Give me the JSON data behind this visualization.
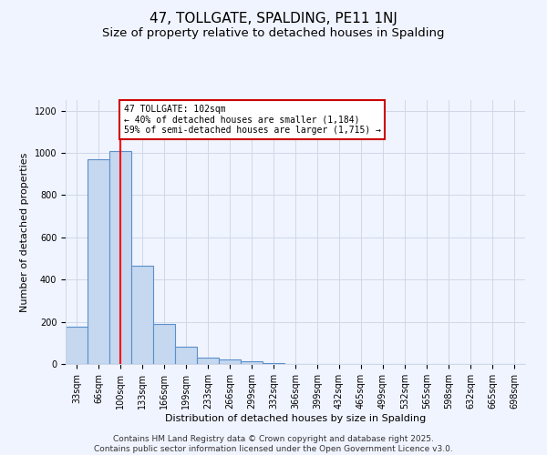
{
  "title": "47, TOLLGATE, SPALDING, PE11 1NJ",
  "subtitle": "Size of property relative to detached houses in Spalding",
  "xlabel": "Distribution of detached houses by size in Spalding",
  "ylabel": "Number of detached properties",
  "categories": [
    "33sqm",
    "66sqm",
    "100sqm",
    "133sqm",
    "166sqm",
    "199sqm",
    "233sqm",
    "266sqm",
    "299sqm",
    "332sqm",
    "366sqm",
    "399sqm",
    "432sqm",
    "465sqm",
    "499sqm",
    "532sqm",
    "565sqm",
    "598sqm",
    "632sqm",
    "665sqm",
    "698sqm"
  ],
  "values": [
    175,
    970,
    1010,
    465,
    190,
    80,
    30,
    20,
    15,
    5,
    2,
    1,
    1,
    0,
    0,
    0,
    0,
    0,
    0,
    0,
    0
  ],
  "bar_color": "#c5d8f0",
  "bar_edge_color": "#5b8fc9",
  "bar_alpha": 1.0,
  "red_line_index": 2,
  "annotation_line1": "47 TOLLGATE: 102sqm",
  "annotation_line2": "← 40% of detached houses are smaller (1,184)",
  "annotation_line3": "59% of semi-detached houses are larger (1,715) →",
  "annotation_box_color": "#ffffff",
  "annotation_box_edge": "#cc0000",
  "ylim": [
    0,
    1250
  ],
  "yticks": [
    0,
    200,
    400,
    600,
    800,
    1000,
    1200
  ],
  "footer_line1": "Contains HM Land Registry data © Crown copyright and database right 2025.",
  "footer_line2": "Contains public sector information licensed under the Open Government Licence v3.0.",
  "bg_color": "#f0f4ff",
  "grid_color": "#d0d8e8",
  "title_fontsize": 11,
  "subtitle_fontsize": 9.5,
  "footer_fontsize": 6.5,
  "tick_fontsize": 7
}
